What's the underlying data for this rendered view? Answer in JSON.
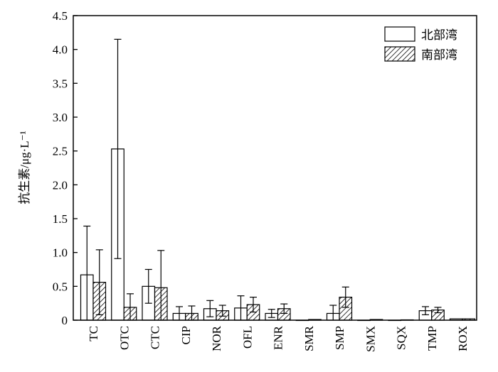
{
  "chart_data": {
    "type": "bar",
    "ylabel": "抗生素/μg·L⁻¹",
    "xlabel": "",
    "ylim": [
      0,
      4.5
    ],
    "yticks": [
      0,
      0.5,
      1.0,
      1.5,
      2.0,
      2.5,
      3.0,
      3.5,
      4.0,
      4.5
    ],
    "ytick_labels": [
      "0",
      "0.5",
      "1.0",
      "1.5",
      "2.0",
      "2.5",
      "3.0",
      "3.5",
      "4.0",
      "4.5"
    ],
    "categories": [
      "TC",
      "OTC",
      "CTC",
      "CIP",
      "NOR",
      "OFL",
      "ENR",
      "SMR",
      "SMP",
      "SMX",
      "SQX",
      "TMP",
      "ROX"
    ],
    "legend_position": "top-right",
    "grid": false,
    "series": [
      {
        "name": "北部湾",
        "fill": "white",
        "values": [
          0.67,
          2.53,
          0.5,
          0.1,
          0.17,
          0.18,
          0.1,
          0,
          0.1,
          0,
          0,
          0.14,
          0.02
        ],
        "errors": [
          0.72,
          1.62,
          0.25,
          0.1,
          0.12,
          0.18,
          0.06,
          0,
          0.12,
          0,
          0,
          0.06,
          0
        ]
      },
      {
        "name": "南部湾",
        "fill": "hatch",
        "values": [
          0.56,
          0.19,
          0.48,
          0.1,
          0.14,
          0.23,
          0.17,
          0.01,
          0.34,
          0.01,
          0.005,
          0.15,
          0.02
        ],
        "errors": [
          0.48,
          0.2,
          0.55,
          0.11,
          0.08,
          0.11,
          0.07,
          0,
          0.15,
          0,
          0,
          0.04,
          0
        ]
      }
    ]
  }
}
